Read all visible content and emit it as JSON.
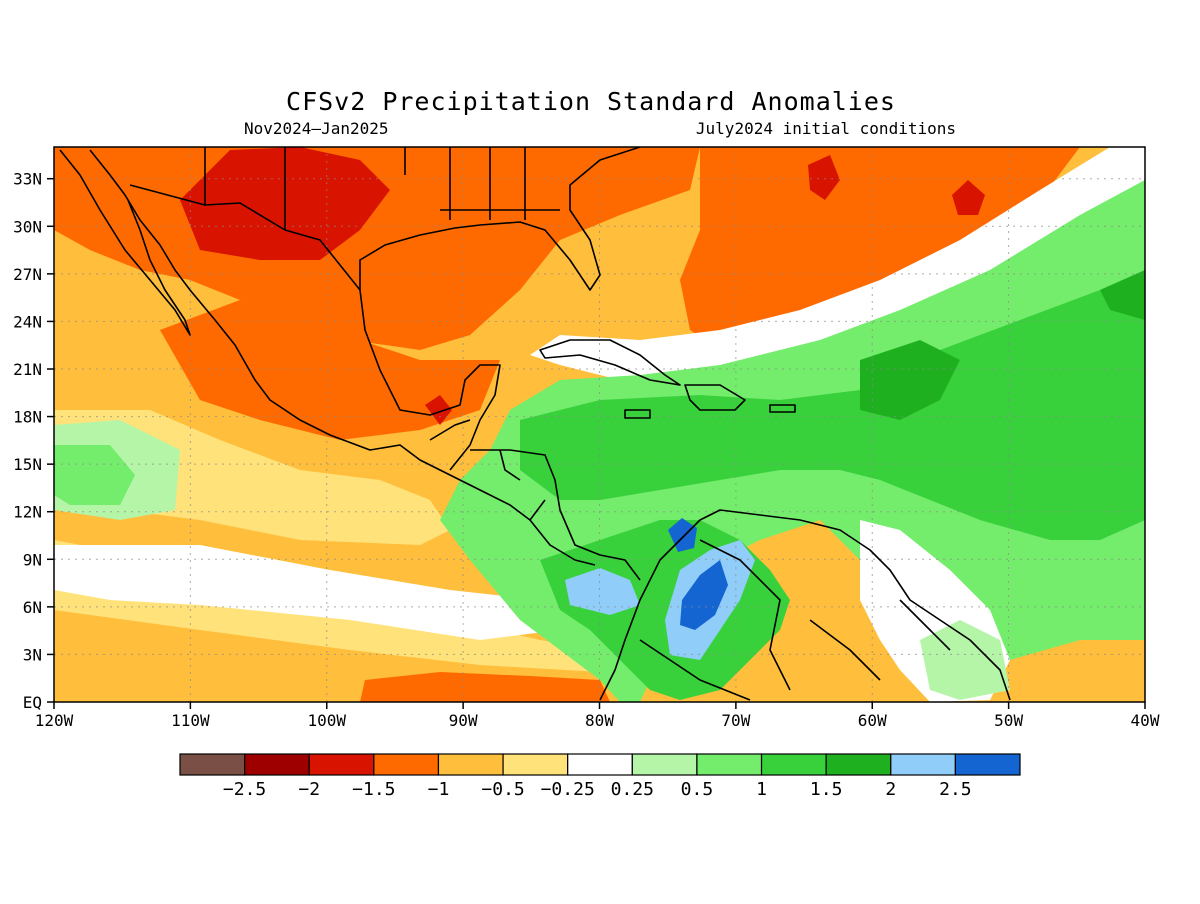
{
  "title": "CFSv2 Precipitation Standard Anomalies",
  "subtitle_left": "Nov2024—Jan2025",
  "subtitle_right": "July2024 initial conditions",
  "map": {
    "lon_range": [
      -120,
      -40
    ],
    "lat_range": [
      0,
      35
    ],
    "x_ticks": [
      {
        "lon": -120,
        "label": "120W"
      },
      {
        "lon": -110,
        "label": "110W"
      },
      {
        "lon": -100,
        "label": "100W"
      },
      {
        "lon": -90,
        "label": "90W"
      },
      {
        "lon": -80,
        "label": "80W"
      },
      {
        "lon": -70,
        "label": "70W"
      },
      {
        "lon": -60,
        "label": "60W"
      },
      {
        "lon": -50,
        "label": "50W"
      },
      {
        "lon": -40,
        "label": "40W"
      }
    ],
    "y_ticks": [
      {
        "lat": 0,
        "label": "EQ"
      },
      {
        "lat": 3,
        "label": "3N"
      },
      {
        "lat": 6,
        "label": "6N"
      },
      {
        "lat": 9,
        "label": "9N"
      },
      {
        "lat": 12,
        "label": "12N"
      },
      {
        "lat": 15,
        "label": "15N"
      },
      {
        "lat": 18,
        "label": "18N"
      },
      {
        "lat": 21,
        "label": "21N"
      },
      {
        "lat": 24,
        "label": "24N"
      },
      {
        "lat": 27,
        "label": "27N"
      },
      {
        "lat": 30,
        "label": "30N"
      },
      {
        "lat": 33,
        "label": "33N"
      }
    ],
    "grid": true
  },
  "legend": {
    "colors": [
      "#7a4f45",
      "#9e0000",
      "#d81400",
      "#ff6a00",
      "#ffbe3c",
      "#ffe27a",
      "#ffffff",
      "#b5f5a8",
      "#74ec6c",
      "#38d13c",
      "#1fb020",
      "#90cdf8",
      "#1464d2"
    ],
    "labels": [
      "−2.5",
      "−2",
      "−1.5",
      "−1",
      "−0.5",
      "−0.25",
      "0.25",
      "0.5",
      "1",
      "1.5",
      "2",
      "2.5"
    ]
  }
}
